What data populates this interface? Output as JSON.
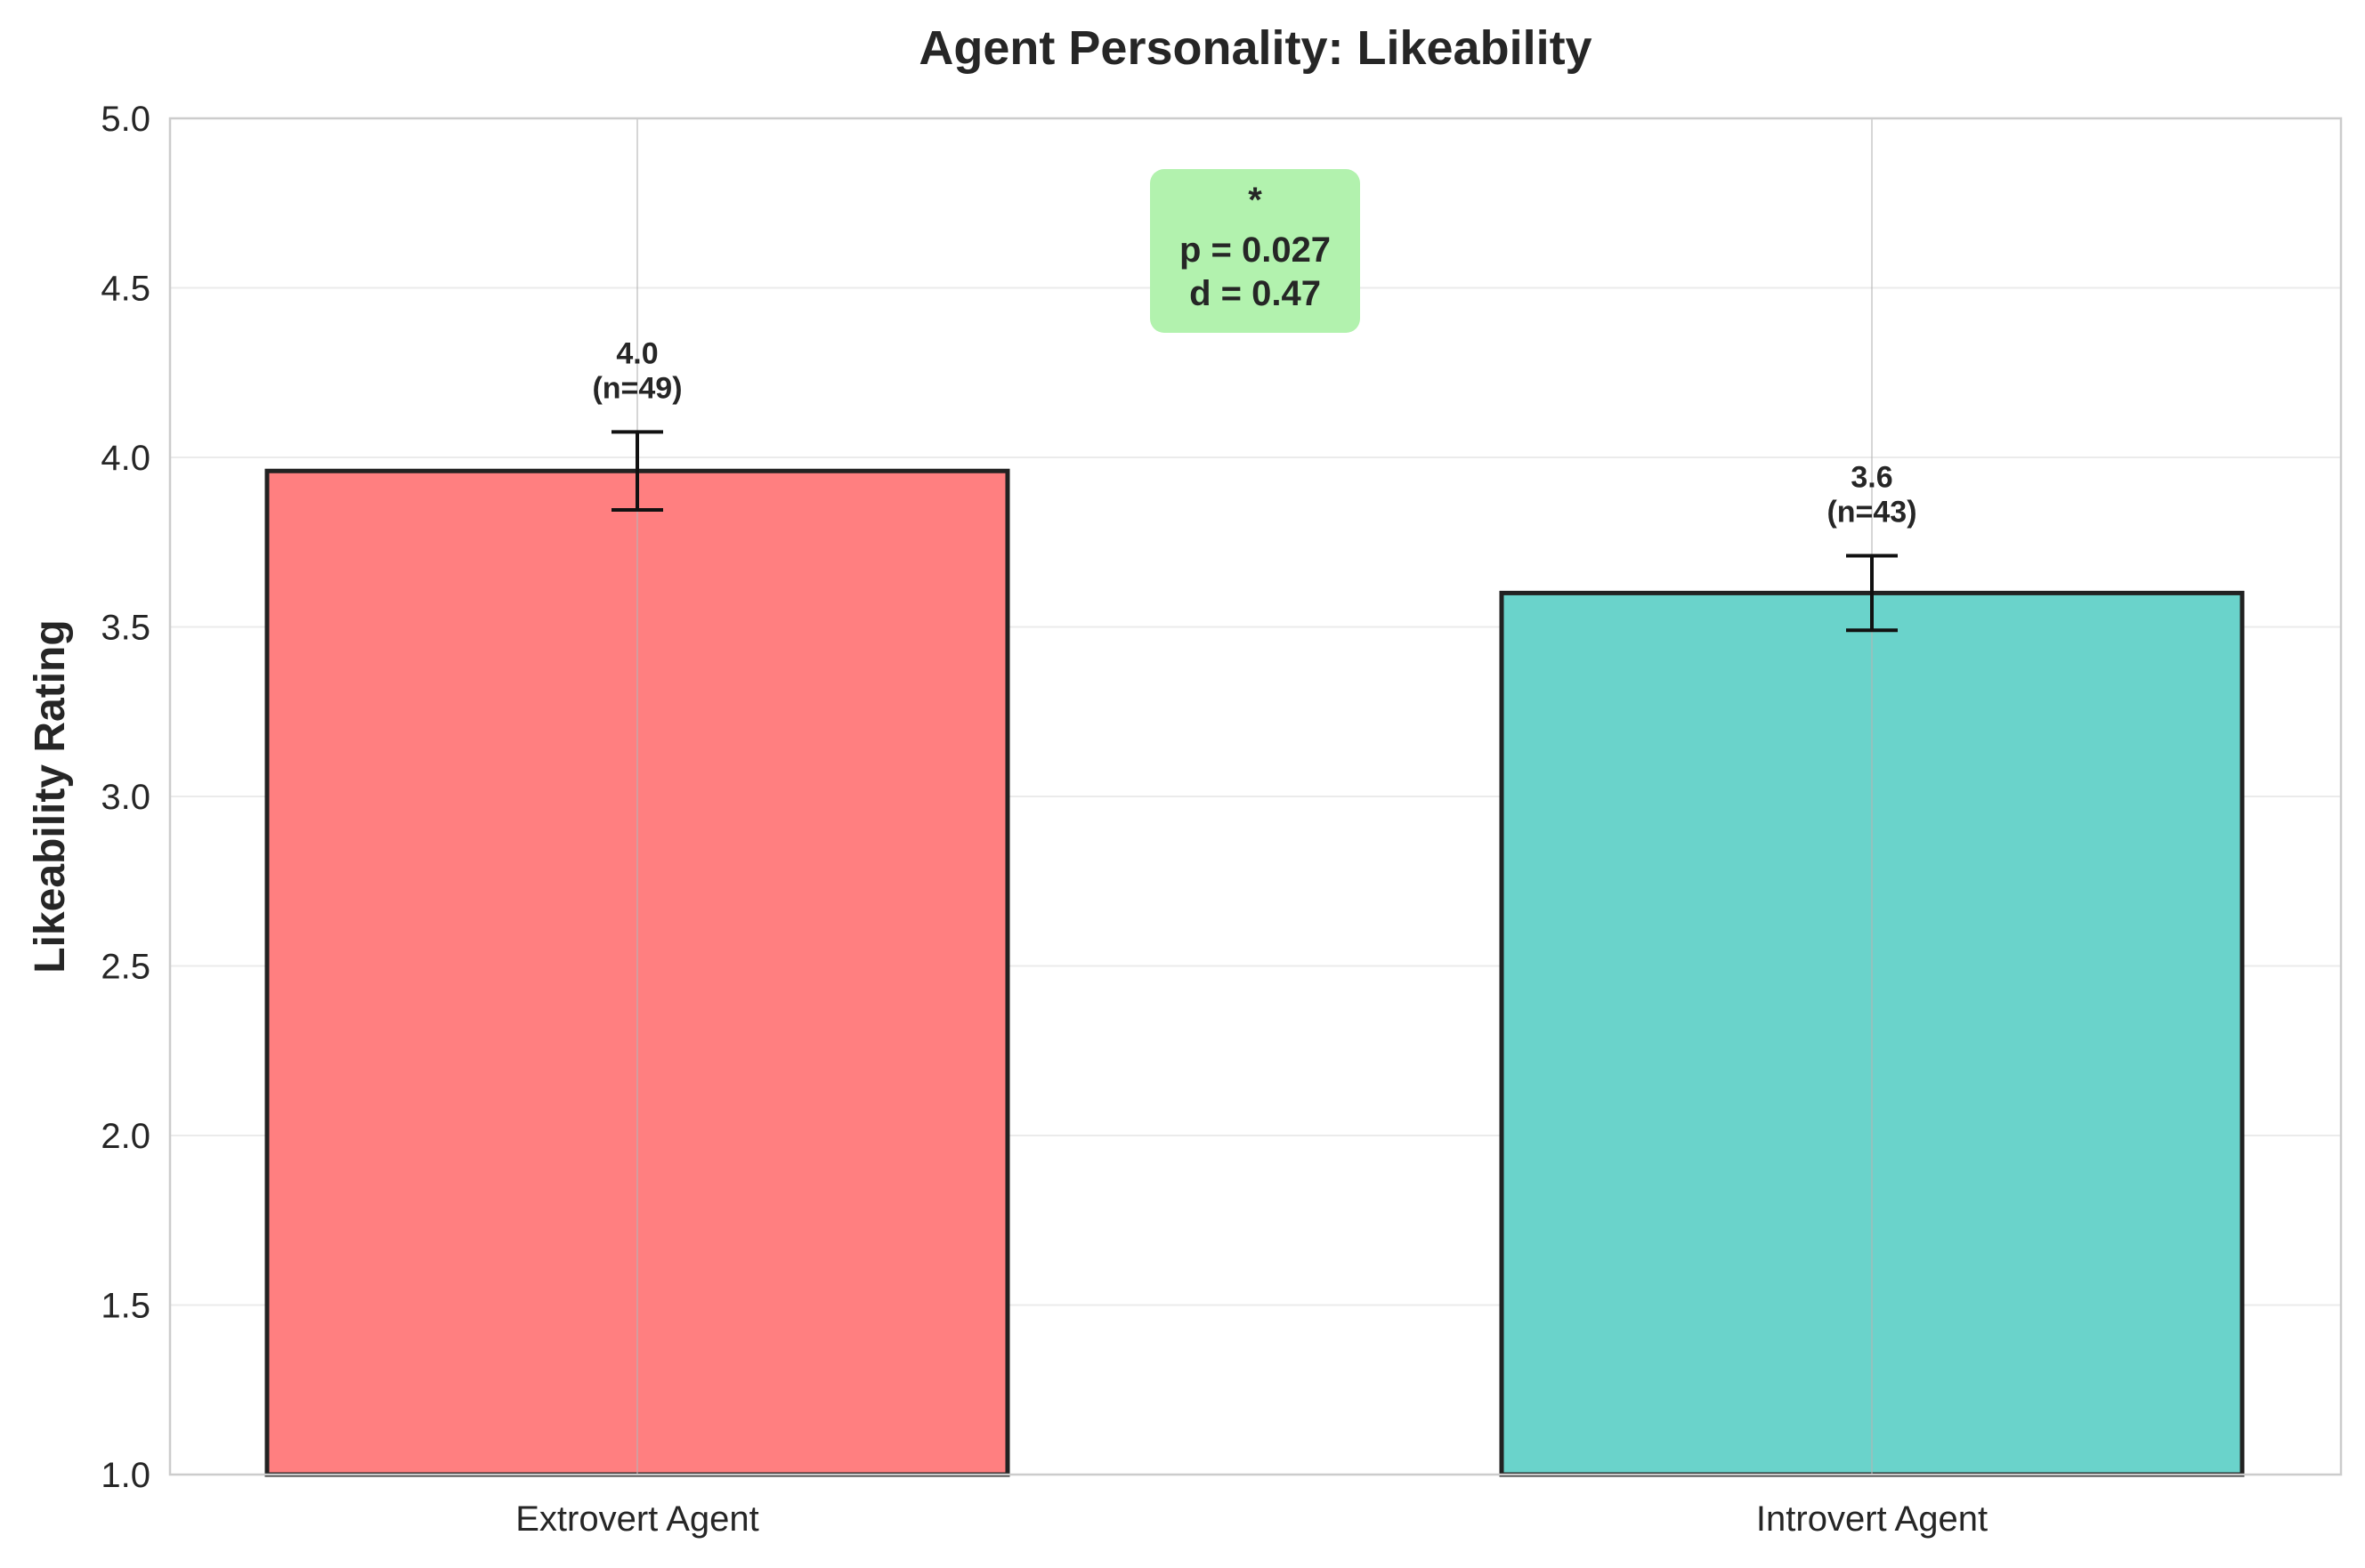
{
  "chart_data": {
    "type": "bar",
    "title": "Agent Personality: Likeability",
    "xlabel": "",
    "ylabel": "Likeability Rating",
    "ylim": [
      1.0,
      5.0
    ],
    "yticks": [
      "1.0",
      "1.5",
      "2.0",
      "2.5",
      "3.0",
      "3.5",
      "4.0",
      "4.5",
      "5.0"
    ],
    "grid": true,
    "categories": [
      "Extrovert Agent",
      "Introvert Agent"
    ],
    "values": [
      3.96,
      3.6
    ],
    "error": [
      0.115,
      0.11
    ],
    "value_labels": [
      "4.0",
      "3.6"
    ],
    "n_labels": [
      "(n=49)",
      "(n=43)"
    ],
    "colors": [
      "#FF7F80",
      "#6AD3CB"
    ],
    "annotation": {
      "lines": [
        "*",
        "p = 0.027",
        "d = 0.47"
      ],
      "bg_color": "#B2F2AE"
    }
  }
}
